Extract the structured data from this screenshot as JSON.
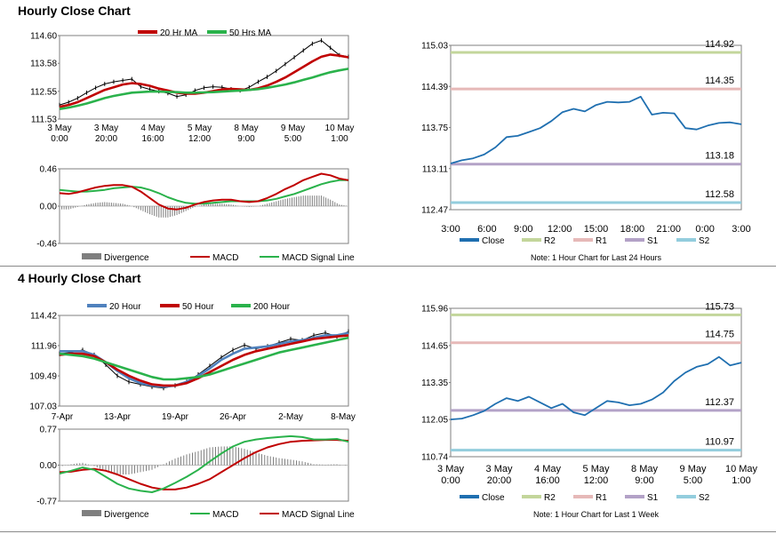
{
  "titles": {
    "hourly": "Hourly Close Chart",
    "four_hourly": "4 Hourly Close Chart"
  },
  "chart_data": [
    {
      "type": "line",
      "legend": [
        "20 Hr MA",
        "50 Hrs MA"
      ],
      "colors": {
        "price": "#000000",
        "ma_short": "#c00000",
        "ma_long": "#2ab24b"
      },
      "x_labels": [
        [
          "3 May",
          "0:00"
        ],
        [
          "3 May",
          "20:00"
        ],
        [
          "4 May",
          "16:00"
        ],
        [
          "5 May",
          "12:00"
        ],
        [
          "8 May",
          "9:00"
        ],
        [
          "9 May",
          "5:00"
        ],
        [
          "10 May",
          "1:00"
        ]
      ],
      "y_ticks": [
        "114.60",
        "113.58",
        "112.55",
        "111.53"
      ],
      "ylim": [
        111.53,
        114.6
      ],
      "price": [
        112.05,
        112.15,
        112.3,
        112.5,
        112.68,
        112.82,
        112.9,
        112.95,
        113.0,
        112.72,
        112.62,
        112.55,
        112.48,
        112.36,
        112.42,
        112.58,
        112.68,
        112.72,
        112.7,
        112.63,
        112.58,
        112.7,
        112.9,
        113.08,
        113.3,
        113.55,
        113.8,
        114.05,
        114.3,
        114.42,
        114.15,
        113.88,
        113.82
      ],
      "ma_short": [
        111.98,
        112.05,
        112.15,
        112.3,
        112.45,
        112.6,
        112.7,
        112.8,
        112.85,
        112.82,
        112.75,
        112.65,
        112.58,
        112.5,
        112.46,
        112.46,
        112.5,
        112.56,
        112.62,
        112.64,
        112.62,
        112.6,
        112.66,
        112.76,
        112.9,
        113.06,
        113.25,
        113.45,
        113.65,
        113.82,
        113.9,
        113.86,
        113.8
      ],
      "ma_long": [
        111.9,
        111.95,
        112.02,
        112.1,
        112.2,
        112.3,
        112.38,
        112.44,
        112.5,
        112.52,
        112.54,
        112.54,
        112.53,
        112.52,
        112.5,
        112.5,
        112.51,
        112.52,
        112.54,
        112.56,
        112.58,
        112.6,
        112.63,
        112.68,
        112.74,
        112.8,
        112.88,
        112.97,
        113.06,
        113.16,
        113.25,
        113.32,
        113.38
      ]
    },
    {
      "type": "line",
      "legend": [
        "Divergence",
        "MACD",
        "MACD Signal Line"
      ],
      "colors": {
        "macd": "#c00000",
        "signal": "#2ab24b",
        "divergence": "#7f7f7f"
      },
      "y_ticks": [
        "0.46",
        "0.00",
        "-0.46"
      ],
      "ylim": [
        -0.46,
        0.46
      ],
      "macd": [
        0.16,
        0.15,
        0.17,
        0.2,
        0.23,
        0.25,
        0.26,
        0.26,
        0.24,
        0.18,
        0.1,
        0.02,
        -0.03,
        -0.04,
        -0.02,
        0.02,
        0.05,
        0.07,
        0.08,
        0.08,
        0.06,
        0.05,
        0.06,
        0.1,
        0.15,
        0.21,
        0.26,
        0.32,
        0.36,
        0.4,
        0.38,
        0.34,
        0.32
      ],
      "signal": [
        0.2,
        0.19,
        0.18,
        0.18,
        0.19,
        0.2,
        0.22,
        0.23,
        0.24,
        0.23,
        0.2,
        0.16,
        0.11,
        0.07,
        0.04,
        0.03,
        0.03,
        0.04,
        0.05,
        0.06,
        0.06,
        0.06,
        0.06,
        0.07,
        0.09,
        0.12,
        0.15,
        0.19,
        0.23,
        0.27,
        0.3,
        0.32,
        0.32
      ],
      "divergence": [
        -0.04,
        -0.04,
        -0.01,
        0.02,
        0.04,
        0.05,
        0.04,
        0.03,
        0.0,
        -0.05,
        -0.1,
        -0.14,
        -0.14,
        -0.11,
        -0.06,
        -0.01,
        0.02,
        0.03,
        0.03,
        0.02,
        0.0,
        -0.01,
        0.0,
        0.03,
        0.06,
        0.09,
        0.11,
        0.13,
        0.13,
        0.13,
        0.08,
        0.02,
        0.0
      ]
    },
    {
      "type": "line",
      "color": "#1f6fb0",
      "x_labels": [
        "3:00",
        "6:00",
        "9:00",
        "12:00",
        "15:00",
        "18:00",
        "21:00",
        "0:00",
        "3:00"
      ],
      "y_ticks": [
        "115.03",
        "114.39",
        "113.75",
        "113.11",
        "112.47"
      ],
      "ylim": [
        112.47,
        115.03
      ],
      "close": [
        113.19,
        113.24,
        113.27,
        113.33,
        113.44,
        113.6,
        113.62,
        113.68,
        113.74,
        113.85,
        113.99,
        114.04,
        114.0,
        114.1,
        114.15,
        114.14,
        114.15,
        114.23,
        113.95,
        113.98,
        113.97,
        113.74,
        113.72,
        113.78,
        113.82,
        113.83,
        113.8
      ],
      "levels": [
        {
          "name": "R2",
          "value": 114.92,
          "label": "114.92",
          "color": "#c3d69b"
        },
        {
          "name": "R1",
          "value": 114.35,
          "label": "114.35",
          "color": "#e6b9b8"
        },
        {
          "name": "S1",
          "value": 113.18,
          "label": "113.18",
          "color": "#b3a2c7"
        },
        {
          "name": "S2",
          "value": 112.58,
          "label": "112.58",
          "color": "#93cddd"
        }
      ],
      "legend": [
        "Close",
        "R2",
        "R1",
        "S1",
        "S2"
      ],
      "note": "Note: 1 Hour Chart for Last 24 Hours"
    },
    {
      "type": "line",
      "legend": [
        "20 Hour",
        "50 Hour",
        "200 Hour"
      ],
      "colors": {
        "price": "#000000",
        "ma20": "#4f81bd",
        "ma50": "#c00000",
        "ma200": "#2ab24b"
      },
      "x_labels": [
        "7-Apr",
        "13-Apr",
        "19-Apr",
        "26-Apr",
        "2-May",
        "8-May"
      ],
      "y_ticks": [
        "114.42",
        "111.96",
        "109.49",
        "107.03"
      ],
      "ylim": [
        107.03,
        114.42
      ],
      "price": [
        111.3,
        111.4,
        111.6,
        111.2,
        110.4,
        109.5,
        109.0,
        108.8,
        108.6,
        108.5,
        108.7,
        109.0,
        109.6,
        110.3,
        111.0,
        111.6,
        112.0,
        111.7,
        111.9,
        112.2,
        112.5,
        112.4,
        112.8,
        113.0,
        112.7,
        113.1
      ],
      "ma20": [
        111.5,
        111.5,
        111.5,
        111.2,
        110.6,
        109.9,
        109.3,
        108.9,
        108.7,
        108.6,
        108.7,
        109.0,
        109.5,
        110.1,
        110.8,
        111.3,
        111.7,
        111.8,
        111.9,
        112.1,
        112.3,
        112.4,
        112.6,
        112.8,
        112.8,
        113.0
      ],
      "ma50": [
        111.2,
        111.3,
        111.3,
        111.1,
        110.6,
        110.0,
        109.5,
        109.1,
        108.8,
        108.7,
        108.7,
        108.9,
        109.3,
        109.8,
        110.3,
        110.8,
        111.2,
        111.5,
        111.7,
        111.9,
        112.1,
        112.3,
        112.5,
        112.6,
        112.7,
        112.8
      ],
      "ma200": [
        111.3,
        111.2,
        111.1,
        110.9,
        110.6,
        110.3,
        110.0,
        109.7,
        109.4,
        109.2,
        109.2,
        109.3,
        109.4,
        109.6,
        109.9,
        110.2,
        110.5,
        110.8,
        111.1,
        111.4,
        111.6,
        111.8,
        112.0,
        112.2,
        112.4,
        112.6
      ]
    },
    {
      "type": "line",
      "legend": [
        "Divergence",
        "MACD",
        "MACD Signal Line"
      ],
      "colors": {
        "macd": "#2ab24b",
        "signal": "#c00000",
        "divergence": "#7f7f7f"
      },
      "y_ticks": [
        "0.77",
        "0.00",
        "-0.77"
      ],
      "ylim": [
        -0.77,
        0.77
      ],
      "macd": [
        -0.18,
        -0.12,
        -0.05,
        -0.1,
        -0.25,
        -0.4,
        -0.5,
        -0.55,
        -0.58,
        -0.5,
        -0.38,
        -0.25,
        -0.1,
        0.08,
        0.25,
        0.4,
        0.5,
        0.55,
        0.58,
        0.6,
        0.62,
        0.6,
        0.55,
        0.55,
        0.56,
        0.5
      ],
      "signal": [
        -0.15,
        -0.14,
        -0.1,
        -0.08,
        -0.12,
        -0.2,
        -0.3,
        -0.4,
        -0.48,
        -0.52,
        -0.52,
        -0.48,
        -0.4,
        -0.3,
        -0.15,
        0.0,
        0.15,
        0.28,
        0.38,
        0.45,
        0.5,
        0.52,
        0.53,
        0.54,
        0.54,
        0.52
      ],
      "divergence": [
        -0.03,
        0.02,
        0.05,
        -0.02,
        -0.13,
        -0.2,
        -0.2,
        -0.15,
        -0.1,
        0.02,
        0.14,
        0.23,
        0.3,
        0.38,
        0.4,
        0.4,
        0.35,
        0.27,
        0.2,
        0.15,
        0.12,
        0.08,
        0.02,
        0.01,
        0.02,
        -0.02
      ]
    },
    {
      "type": "line",
      "color": "#1f6fb0",
      "x_labels": [
        [
          "3 May",
          "0:00"
        ],
        [
          "3 May",
          "20:00"
        ],
        [
          "4 May",
          "16:00"
        ],
        [
          "5 May",
          "12:00"
        ],
        [
          "8 May",
          "9:00"
        ],
        [
          "9 May",
          "5:00"
        ],
        [
          "10 May",
          "1:00"
        ]
      ],
      "y_ticks": [
        "115.96",
        "114.65",
        "113.35",
        "112.05",
        "110.74"
      ],
      "ylim": [
        110.74,
        115.96
      ],
      "close": [
        112.05,
        112.08,
        112.2,
        112.35,
        112.6,
        112.8,
        112.7,
        112.85,
        112.65,
        112.45,
        112.6,
        112.3,
        112.2,
        112.45,
        112.7,
        112.65,
        112.55,
        112.6,
        112.75,
        113.0,
        113.4,
        113.7,
        113.9,
        114.0,
        114.25,
        113.95,
        114.05
      ],
      "levels": [
        {
          "name": "R2",
          "value": 115.73,
          "label": "115.73",
          "color": "#c3d69b"
        },
        {
          "name": "R1",
          "value": 114.75,
          "label": "114.75",
          "color": "#e6b9b8"
        },
        {
          "name": "S1",
          "value": 112.37,
          "label": "112.37",
          "color": "#b3a2c7"
        },
        {
          "name": "S2",
          "value": 110.97,
          "label": "110.97",
          "color": "#93cddd"
        }
      ],
      "legend": [
        "Close",
        "R2",
        "R1",
        "S1",
        "S2"
      ],
      "note": "Note: 1 Hour Chart for Last 1 Week"
    }
  ]
}
